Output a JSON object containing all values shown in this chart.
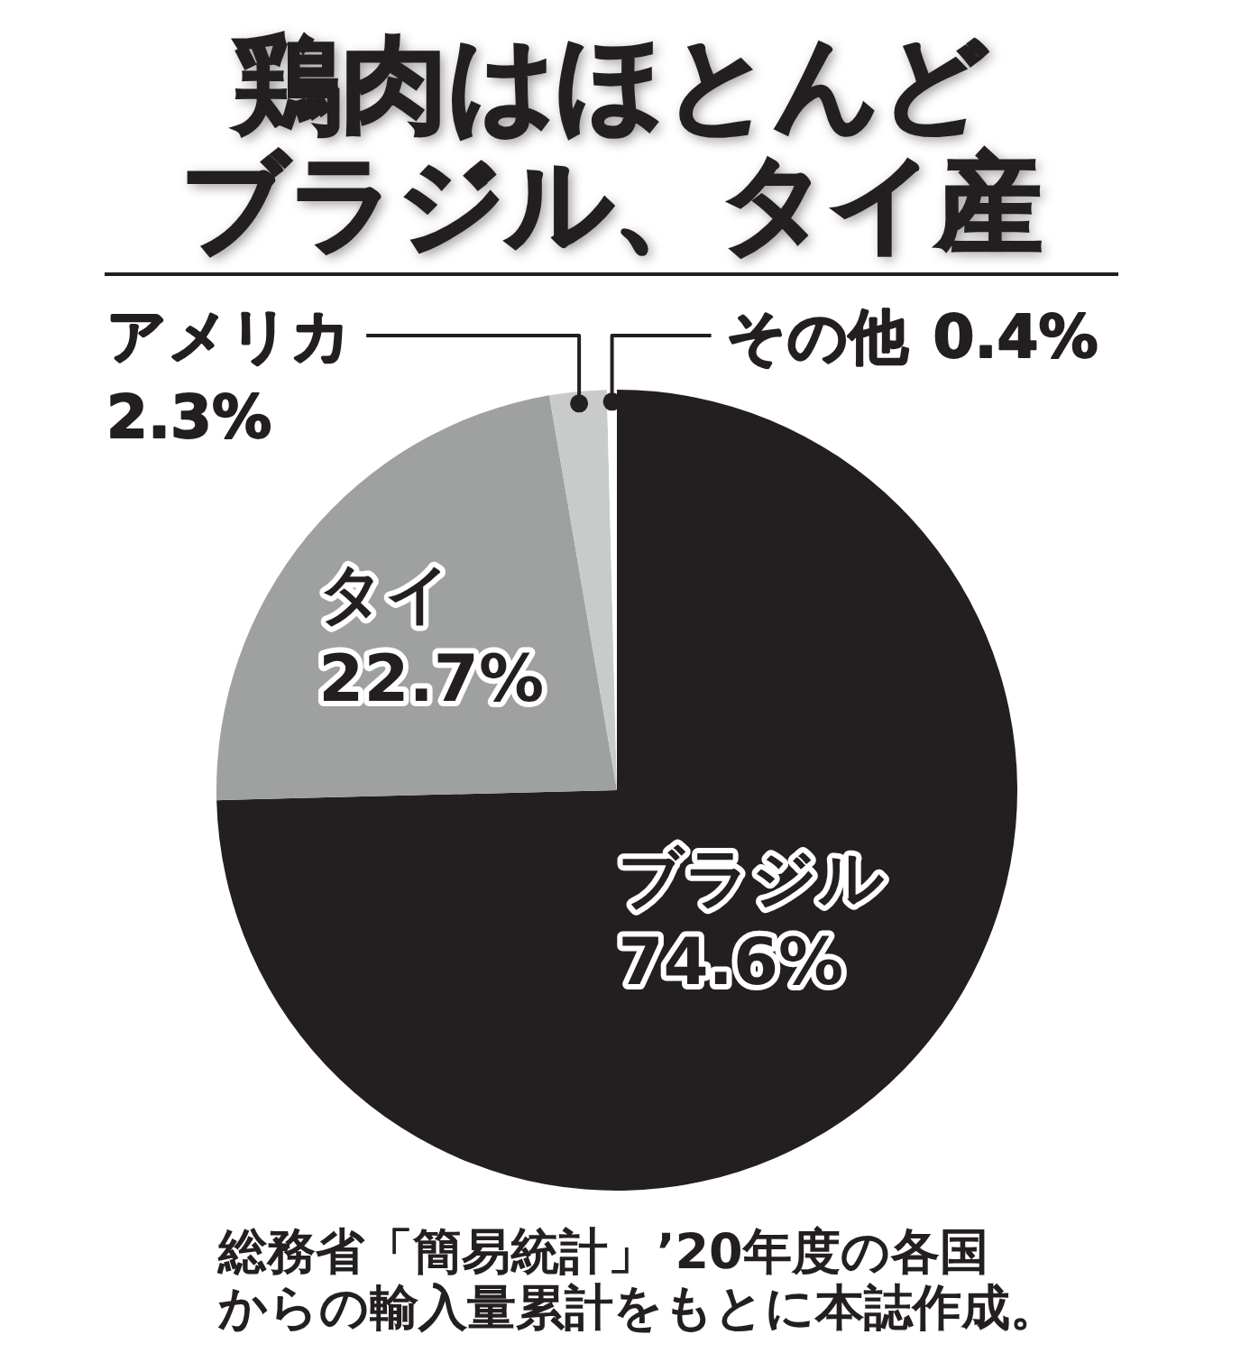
{
  "chart_data": {
    "type": "pie",
    "title": "鶏肉はほとんどブラジル、タイ産",
    "categories": [
      "ブラジル",
      "タイ",
      "アメリカ",
      "その他"
    ],
    "values": [
      74.6,
      22.7,
      2.3,
      0.4
    ],
    "colors": [
      "#231f20",
      "#9fa0a0",
      "#c9caca",
      "#ffffff"
    ],
    "value_labels": [
      "74.6%",
      "22.7%",
      "2.3%",
      "0.4%"
    ],
    "annotations": [
      "総務省「簡易統計」’20年度の各国からの輸入量累計をもとに本誌作成。"
    ]
  }
}
